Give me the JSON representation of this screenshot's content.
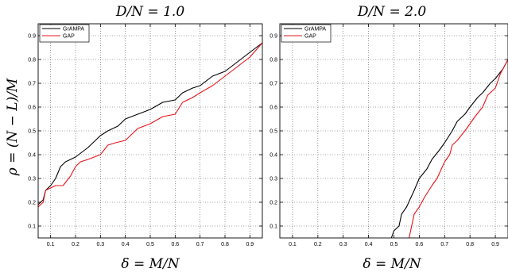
{
  "chart_data": [
    {
      "type": "line",
      "title": "D/N = 1.0",
      "xlabel": "δ = M/N",
      "ylabel": "ρ = (N − L)/M",
      "xlim": [
        0.05,
        0.95
      ],
      "ylim": [
        0.05,
        0.95
      ],
      "xticks": [
        "0.1",
        "0.2",
        "0.3",
        "0.4",
        "0.5",
        "0.6",
        "0.7",
        "0.8",
        "0.9"
      ],
      "yticks": [
        "0.1",
        "0.2",
        "0.3",
        "0.4",
        "0.5",
        "0.6",
        "0.7",
        "0.8",
        "0.9"
      ],
      "grid": "dotted",
      "legend_position": "top-left",
      "series": [
        {
          "name": "GrAMPA",
          "color": "#000000",
          "x": [
            0.05,
            0.06,
            0.07,
            0.08,
            0.1,
            0.12,
            0.14,
            0.16,
            0.2,
            0.25,
            0.3,
            0.33,
            0.37,
            0.4,
            0.45,
            0.5,
            0.55,
            0.6,
            0.63,
            0.67,
            0.7,
            0.75,
            0.8,
            0.85,
            0.9,
            0.95
          ],
          "y": [
            0.19,
            0.2,
            0.21,
            0.25,
            0.27,
            0.3,
            0.35,
            0.37,
            0.39,
            0.43,
            0.48,
            0.5,
            0.52,
            0.55,
            0.57,
            0.59,
            0.62,
            0.63,
            0.66,
            0.68,
            0.69,
            0.73,
            0.75,
            0.79,
            0.83,
            0.87
          ]
        },
        {
          "name": "GAP",
          "color": "#e8141a",
          "x": [
            0.05,
            0.06,
            0.07,
            0.08,
            0.1,
            0.12,
            0.15,
            0.18,
            0.2,
            0.22,
            0.25,
            0.3,
            0.33,
            0.36,
            0.4,
            0.45,
            0.5,
            0.55,
            0.6,
            0.63,
            0.67,
            0.7,
            0.75,
            0.8,
            0.85,
            0.9,
            0.95
          ],
          "y": [
            0.18,
            0.19,
            0.2,
            0.25,
            0.26,
            0.27,
            0.27,
            0.31,
            0.35,
            0.37,
            0.38,
            0.4,
            0.44,
            0.45,
            0.46,
            0.51,
            0.53,
            0.56,
            0.57,
            0.62,
            0.64,
            0.66,
            0.69,
            0.73,
            0.77,
            0.81,
            0.87
          ]
        }
      ]
    },
    {
      "type": "line",
      "title": "D/N = 2.0",
      "xlabel": "δ = M/N",
      "ylabel": "",
      "xlim": [
        0.05,
        0.95
      ],
      "ylim": [
        0.05,
        0.95
      ],
      "xticks": [
        "0.1",
        "0.2",
        "0.3",
        "0.4",
        "0.5",
        "0.6",
        "0.7",
        "0.8",
        "0.9"
      ],
      "yticks": [
        "0.1",
        "0.2",
        "0.3",
        "0.4",
        "0.5",
        "0.6",
        "0.7",
        "0.8",
        "0.9"
      ],
      "grid": "dotted",
      "legend_position": "top-left",
      "series": [
        {
          "name": "GrAMPA",
          "color": "#000000",
          "x": [
            0.49,
            0.5,
            0.52,
            0.53,
            0.55,
            0.58,
            0.6,
            0.63,
            0.65,
            0.68,
            0.7,
            0.73,
            0.75,
            0.78,
            0.8,
            0.83,
            0.85,
            0.88,
            0.9,
            0.93,
            0.95
          ],
          "y": [
            0.05,
            0.08,
            0.1,
            0.15,
            0.18,
            0.25,
            0.3,
            0.34,
            0.38,
            0.42,
            0.45,
            0.5,
            0.54,
            0.57,
            0.6,
            0.64,
            0.66,
            0.7,
            0.72,
            0.76,
            0.8
          ]
        },
        {
          "name": "GAP",
          "color": "#e8141a",
          "x": [
            0.56,
            0.57,
            0.58,
            0.6,
            0.62,
            0.65,
            0.67,
            0.7,
            0.72,
            0.73,
            0.75,
            0.78,
            0.8,
            0.82,
            0.85,
            0.87,
            0.9,
            0.92,
            0.95
          ],
          "y": [
            0.05,
            0.1,
            0.15,
            0.18,
            0.22,
            0.27,
            0.3,
            0.37,
            0.4,
            0.44,
            0.46,
            0.5,
            0.53,
            0.56,
            0.6,
            0.65,
            0.68,
            0.74,
            0.8
          ]
        }
      ]
    }
  ]
}
